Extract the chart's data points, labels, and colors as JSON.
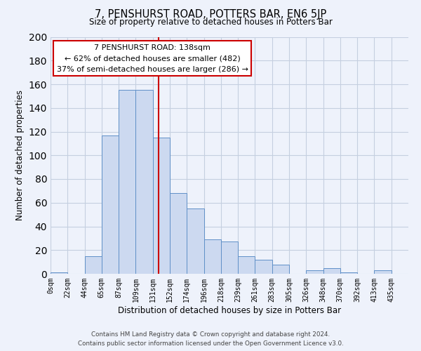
{
  "title": "7, PENSHURST ROAD, POTTERS BAR, EN6 5JP",
  "subtitle": "Size of property relative to detached houses in Potters Bar",
  "xlabel": "Distribution of detached houses by size in Potters Bar",
  "ylabel": "Number of detached properties",
  "bin_labels": [
    "0sqm",
    "22sqm",
    "44sqm",
    "65sqm",
    "87sqm",
    "109sqm",
    "131sqm",
    "152sqm",
    "174sqm",
    "196sqm",
    "218sqm",
    "239sqm",
    "261sqm",
    "283sqm",
    "305sqm",
    "326sqm",
    "348sqm",
    "370sqm",
    "392sqm",
    "413sqm",
    "435sqm"
  ],
  "bar_heights": [
    1,
    0,
    15,
    117,
    155,
    155,
    115,
    68,
    55,
    29,
    27,
    15,
    12,
    8,
    0,
    3,
    5,
    1,
    0,
    3,
    0
  ],
  "bar_color": "#ccd9f0",
  "bar_edge_color": "#6090c8",
  "vline_color": "#cc0000",
  "annotation_title": "7 PENSHURST ROAD: 138sqm",
  "annotation_line1": "← 62% of detached houses are smaller (482)",
  "annotation_line2": "37% of semi-detached houses are larger (286) →",
  "annotation_box_color": "#ffffff",
  "annotation_box_edge": "#cc0000",
  "ylim": [
    0,
    200
  ],
  "yticks": [
    0,
    20,
    40,
    60,
    80,
    100,
    120,
    140,
    160,
    180,
    200
  ],
  "footer1": "Contains HM Land Registry data © Crown copyright and database right 2024.",
  "footer2": "Contains public sector information licensed under the Open Government Licence v3.0.",
  "background_color": "#eef2fb",
  "grid_color": "#c5cfe0"
}
